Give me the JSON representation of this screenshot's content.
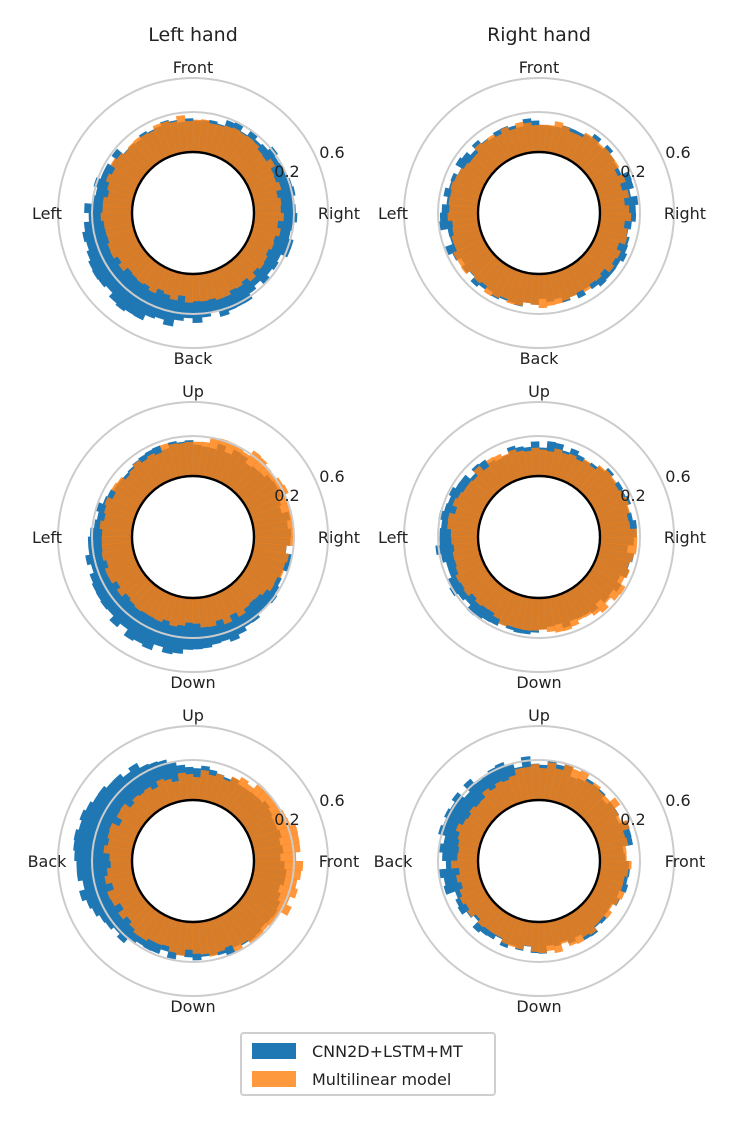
{
  "colors": {
    "cnn": "#1f77b4",
    "multilinear": "#ff7f0e"
  },
  "legend": {
    "entries": [
      {
        "label": "CNN2D+LSTM+MT",
        "color": "#1f77b4"
      },
      {
        "label": "Multilinear model",
        "color": "#ff7f0e"
      }
    ]
  },
  "chart_data": [
    {
      "type": "polar-bar",
      "title": "Left hand",
      "view": "front",
      "labels": {
        "top": "Front",
        "right": "Right",
        "bottom": "Back",
        "left": "Left"
      },
      "radial_ticks": [
        "0.2",
        "0.6"
      ],
      "radial_range": [
        0,
        0.6
      ],
      "grid": true,
      "series": [
        {
          "name": "CNN2D+LSTM+MT",
          "shape": {
            "base": 0.27,
            "dir": 3.9,
            "k": 0.18,
            "dir2": 1.5,
            "k2": 0.07,
            "noise": 0.035,
            "seed": 11
          }
        },
        {
          "name": "Multilinear model",
          "shape": {
            "base": 0.21,
            "dir": 0.2,
            "k": 0.06,
            "dir2": 5.2,
            "k2": 0.03,
            "noise": 0.03,
            "seed": 12
          }
        }
      ]
    },
    {
      "type": "polar-bar",
      "title": "Right hand",
      "view": "front",
      "labels": {
        "top": "Front",
        "right": "Right",
        "bottom": "Back",
        "left": "Left"
      },
      "radial_ticks": [
        "0.2",
        "0.6"
      ],
      "radial_range": [
        0,
        0.6
      ],
      "grid": true,
      "series": [
        {
          "name": "CNN2D+LSTM+MT",
          "shape": {
            "base": 0.24,
            "dir": 1.6,
            "k": 0.04,
            "dir2": 4.6,
            "k2": 0.04,
            "noise": 0.04,
            "seed": 21
          }
        },
        {
          "name": "Multilinear model",
          "shape": {
            "base": 0.22,
            "dir": 3.7,
            "k": 0.04,
            "dir2": 0.5,
            "k2": 0.02,
            "noise": 0.03,
            "seed": 22
          }
        }
      ]
    },
    {
      "type": "polar-bar",
      "title": "",
      "view": "up",
      "labels": {
        "top": "Up",
        "right": "Right",
        "bottom": "Down",
        "left": "Left"
      },
      "radial_ticks": [
        "0.2",
        "0.6"
      ],
      "radial_range": [
        0,
        0.6
      ],
      "grid": true,
      "series": [
        {
          "name": "CNN2D+LSTM+MT",
          "shape": {
            "base": 0.27,
            "dir": 3.7,
            "k": 0.17,
            "dir2": 2.6,
            "k2": 0.04,
            "noise": 0.03,
            "seed": 31
          }
        },
        {
          "name": "Multilinear model",
          "shape": {
            "base": 0.23,
            "dir": 0.9,
            "k": 0.11,
            "dir2": 5.0,
            "k2": 0.02,
            "noise": 0.03,
            "seed": 32
          }
        }
      ]
    },
    {
      "type": "polar-bar",
      "title": "",
      "view": "up",
      "labels": {
        "top": "Up",
        "right": "Right",
        "bottom": "Down",
        "left": "Left"
      },
      "radial_ticks": [
        "0.2",
        "0.6"
      ],
      "radial_range": [
        0,
        0.6
      ],
      "grid": true,
      "series": [
        {
          "name": "CNN2D+LSTM+MT",
          "shape": {
            "base": 0.24,
            "dir": 4.3,
            "k": 0.08,
            "dir2": 1.2,
            "k2": 0.03,
            "noise": 0.035,
            "seed": 41
          }
        },
        {
          "name": "Multilinear model",
          "shape": {
            "base": 0.23,
            "dir": 1.8,
            "k": 0.04,
            "dir2": 2.8,
            "k2": 0.03,
            "noise": 0.03,
            "seed": 42
          }
        }
      ]
    },
    {
      "type": "polar-bar",
      "title": "",
      "view": "side",
      "labels": {
        "top": "Up",
        "right": "Front",
        "bottom": "Down",
        "left": "Back"
      },
      "radial_ticks": [
        "0.2",
        "0.6"
      ],
      "radial_range": [
        0,
        0.6
      ],
      "grid": true,
      "series": [
        {
          "name": "CNN2D+LSTM+MT",
          "shape": {
            "base": 0.24,
            "dir": 5.0,
            "k": 0.24,
            "dir2": 3.1,
            "k2": 0.06,
            "noise": 0.03,
            "seed": 51
          }
        },
        {
          "name": "Multilinear model",
          "shape": {
            "base": 0.2,
            "dir": 1.55,
            "k": 0.17,
            "dir2": 3.2,
            "k2": 0.05,
            "noise": 0.035,
            "seed": 52
          }
        }
      ]
    },
    {
      "type": "polar-bar",
      "title": "",
      "view": "side",
      "labels": {
        "top": "Up",
        "right": "Front",
        "bottom": "Down",
        "left": "Back"
      },
      "radial_ticks": [
        "0.2",
        "0.6"
      ],
      "radial_range": [
        0,
        0.6
      ],
      "grid": true,
      "series": [
        {
          "name": "CNN2D+LSTM+MT",
          "shape": {
            "base": 0.22,
            "dir": 5.3,
            "k": 0.1,
            "dir2": 0.3,
            "k2": 0.05,
            "noise": 0.045,
            "seed": 61
          }
        },
        {
          "name": "Multilinear model",
          "shape": {
            "base": 0.19,
            "dir": 0.5,
            "k": 0.1,
            "dir2": 2.9,
            "k2": 0.04,
            "noise": 0.035,
            "seed": 62
          }
        }
      ]
    }
  ]
}
